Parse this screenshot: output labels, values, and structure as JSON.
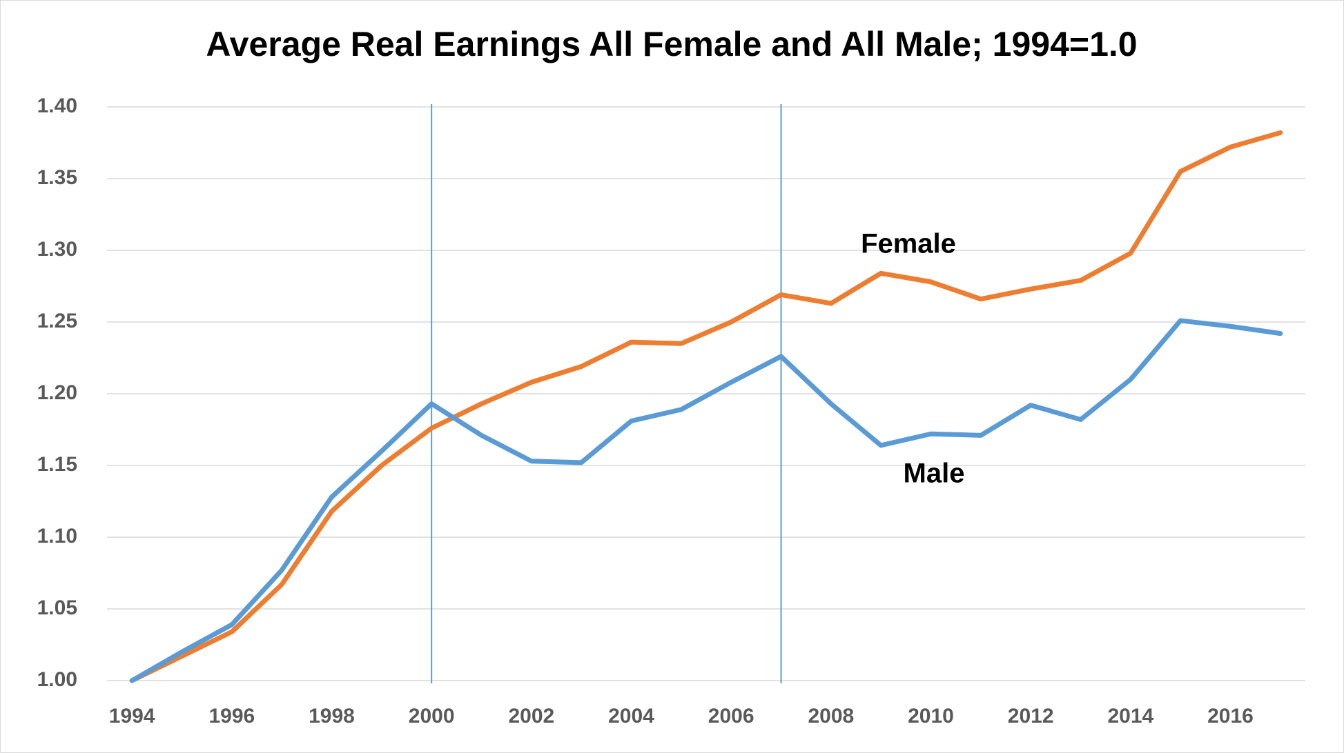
{
  "chart_data": {
    "type": "line",
    "title": "Average Real Earnings  All Female and All Male; 1994=1.0",
    "x": [
      1994,
      1995,
      1996,
      1997,
      1998,
      1999,
      2000,
      2001,
      2002,
      2003,
      2004,
      2005,
      2006,
      2007,
      2008,
      2009,
      2010,
      2011,
      2012,
      2013,
      2014,
      2015,
      2016,
      2017
    ],
    "series": [
      {
        "name": "Female",
        "color": "#ed7d31",
        "values": [
          1.0,
          1.017,
          1.034,
          1.067,
          1.118,
          1.15,
          1.176,
          1.193,
          1.208,
          1.219,
          1.236,
          1.235,
          1.25,
          1.269,
          1.263,
          1.284,
          1.278,
          1.266,
          1.273,
          1.279,
          1.298,
          1.355,
          1.372,
          1.382
        ]
      },
      {
        "name": "Male",
        "color": "#5b9bd5",
        "values": [
          1.0,
          1.02,
          1.039,
          1.077,
          1.128,
          1.16,
          1.193,
          1.171,
          1.153,
          1.152,
          1.181,
          1.189,
          1.208,
          1.226,
          1.193,
          1.164,
          1.172,
          1.171,
          1.192,
          1.182,
          1.21,
          1.251,
          1.247,
          1.242
        ]
      }
    ],
    "xlim": [
      1993.5,
      2017.5
    ],
    "xticks": [
      1994,
      1996,
      1998,
      2000,
      2002,
      2004,
      2006,
      2008,
      2010,
      2012,
      2014,
      2016
    ],
    "ylim": [
      1.0,
      1.4
    ],
    "yticks": [
      {
        "value": 1.0,
        "label": "1.00"
      },
      {
        "value": 1.05,
        "label": "1.05"
      },
      {
        "value": 1.1,
        "label": "1.10"
      },
      {
        "value": 1.15,
        "label": "1.15"
      },
      {
        "value": 1.2,
        "label": "1.20"
      },
      {
        "value": 1.25,
        "label": "1.25"
      },
      {
        "value": 1.3,
        "label": "1.30"
      },
      {
        "value": 1.35,
        "label": "1.35"
      },
      {
        "value": 1.4,
        "label": "1.40"
      }
    ],
    "grid": true,
    "vlines": [
      2000,
      2007
    ],
    "vline_color": "#5b9bd5"
  }
}
